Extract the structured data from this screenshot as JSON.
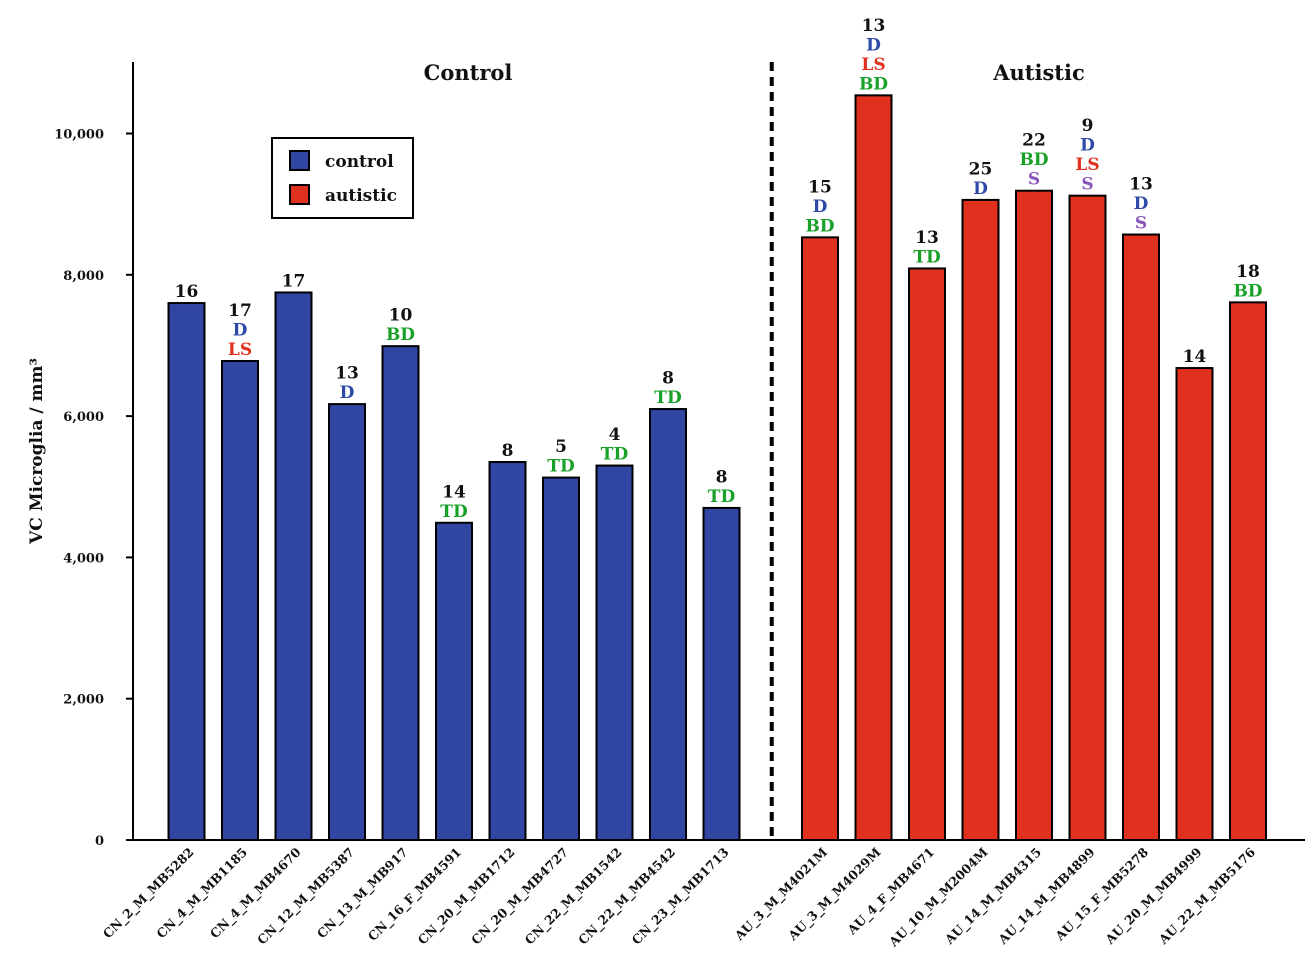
{
  "chart_data": {
    "type": "bar",
    "ylabel": "VC Microglia / mm³",
    "ylim": [
      0,
      11000
    ],
    "yticks": [
      0,
      2000,
      4000,
      6000,
      8000,
      10000
    ],
    "ytick_labels": [
      "0",
      "2,000",
      "4,000",
      "6,000",
      "8,000",
      "10,000"
    ],
    "groups": [
      {
        "key": "control",
        "label": "Control",
        "color": "#3145a3"
      },
      {
        "key": "autistic",
        "label": "Autistic",
        "color": "#e0301e"
      }
    ],
    "legend": {
      "placement": "upper-left",
      "entries": [
        {
          "label": "control",
          "color": "#3145a3"
        },
        {
          "label": "autistic",
          "color": "#e0301e"
        }
      ]
    },
    "divider_between_groups": true,
    "annotation_colors": {
      "num": "#111111",
      "D": "#2e4aa8",
      "LS": "#e0301e",
      "BD": "#19a028",
      "TD": "#19a028",
      "S": "#8a55b8"
    },
    "bars": [
      {
        "category": "CN_2_M_MB5282",
        "group": "control",
        "value": 7600,
        "labels": [
          {
            "text": "16",
            "type": "num"
          }
        ]
      },
      {
        "category": "CN_4_M_MB1185",
        "group": "control",
        "value": 6780,
        "labels": [
          {
            "text": "17",
            "type": "num"
          },
          {
            "text": "D",
            "type": "D"
          },
          {
            "text": "LS",
            "type": "LS"
          }
        ]
      },
      {
        "category": "CN_4_M_MB4670",
        "group": "control",
        "value": 7750,
        "labels": [
          {
            "text": "17",
            "type": "num"
          }
        ]
      },
      {
        "category": "CN_12_M_MB5387",
        "group": "control",
        "value": 6170,
        "labels": [
          {
            "text": "13",
            "type": "num"
          },
          {
            "text": "D",
            "type": "D"
          }
        ]
      },
      {
        "category": "CN_13_M_MB917",
        "group": "control",
        "value": 6990,
        "labels": [
          {
            "text": "10",
            "type": "num"
          },
          {
            "text": "BD",
            "type": "BD"
          }
        ]
      },
      {
        "category": "CN_16_F_MB4591",
        "group": "control",
        "value": 4490,
        "labels": [
          {
            "text": "14",
            "type": "num"
          },
          {
            "text": "TD",
            "type": "TD"
          }
        ]
      },
      {
        "category": "CN_20_M_MB1712",
        "group": "control",
        "value": 5350,
        "labels": [
          {
            "text": "8",
            "type": "num"
          }
        ]
      },
      {
        "category": "CN_20_M_MB4727",
        "group": "control",
        "value": 5130,
        "labels": [
          {
            "text": "5",
            "type": "num"
          },
          {
            "text": "TD",
            "type": "TD"
          }
        ]
      },
      {
        "category": "CN_22_M_MB1542",
        "group": "control",
        "value": 5300,
        "labels": [
          {
            "text": "4",
            "type": "num"
          },
          {
            "text": "TD",
            "type": "TD"
          }
        ]
      },
      {
        "category": "CN_22_M_MB4542",
        "group": "control",
        "value": 6100,
        "labels": [
          {
            "text": "8",
            "type": "num"
          },
          {
            "text": "TD",
            "type": "TD"
          }
        ]
      },
      {
        "category": "CN_23_M_MB1713",
        "group": "control",
        "value": 4700,
        "labels": [
          {
            "text": "8",
            "type": "num"
          },
          {
            "text": "TD",
            "type": "TD"
          }
        ]
      },
      {
        "category": "AU_3_M_M4021M",
        "group": "autistic",
        "value": 8530,
        "labels": [
          {
            "text": "15",
            "type": "num"
          },
          {
            "text": "D",
            "type": "D"
          },
          {
            "text": "BD",
            "type": "BD"
          }
        ]
      },
      {
        "category": "AU_3_M_M4029M",
        "group": "autistic",
        "value": 10540,
        "labels": [
          {
            "text": "13",
            "type": "num"
          },
          {
            "text": "D",
            "type": "D"
          },
          {
            "text": "LS",
            "type": "LS"
          },
          {
            "text": "BD",
            "type": "BD"
          }
        ]
      },
      {
        "category": "AU_4_F_MB4671",
        "group": "autistic",
        "value": 8090,
        "labels": [
          {
            "text": "13",
            "type": "num"
          },
          {
            "text": "TD",
            "type": "TD"
          }
        ]
      },
      {
        "category": "AU_10_M_M2004M",
        "group": "autistic",
        "value": 9060,
        "labels": [
          {
            "text": "25",
            "type": "num"
          },
          {
            "text": "D",
            "type": "D"
          }
        ]
      },
      {
        "category": "AU_14_M_MB4315",
        "group": "autistic",
        "value": 9190,
        "labels": [
          {
            "text": "22",
            "type": "num"
          },
          {
            "text": "BD",
            "type": "BD"
          },
          {
            "text": "S",
            "type": "S"
          }
        ]
      },
      {
        "category": "AU_14_M_MB4899",
        "group": "autistic",
        "value": 9120,
        "labels": [
          {
            "text": "9",
            "type": "num"
          },
          {
            "text": "D",
            "type": "D"
          },
          {
            "text": "LS",
            "type": "LS"
          },
          {
            "text": "S",
            "type": "S"
          }
        ]
      },
      {
        "category": "AU_15_F_MB5278",
        "group": "autistic",
        "value": 8570,
        "labels": [
          {
            "text": "13",
            "type": "num"
          },
          {
            "text": "D",
            "type": "D"
          },
          {
            "text": "S",
            "type": "S"
          }
        ]
      },
      {
        "category": "AU_20_M_MB4999",
        "group": "autistic",
        "value": 6680,
        "labels": [
          {
            "text": "14",
            "type": "num"
          }
        ]
      },
      {
        "category": "AU_22_M_MB5176",
        "group": "autistic",
        "value": 7610,
        "labels": [
          {
            "text": "18",
            "type": "num"
          },
          {
            "text": "BD",
            "type": "BD"
          }
        ]
      }
    ]
  }
}
